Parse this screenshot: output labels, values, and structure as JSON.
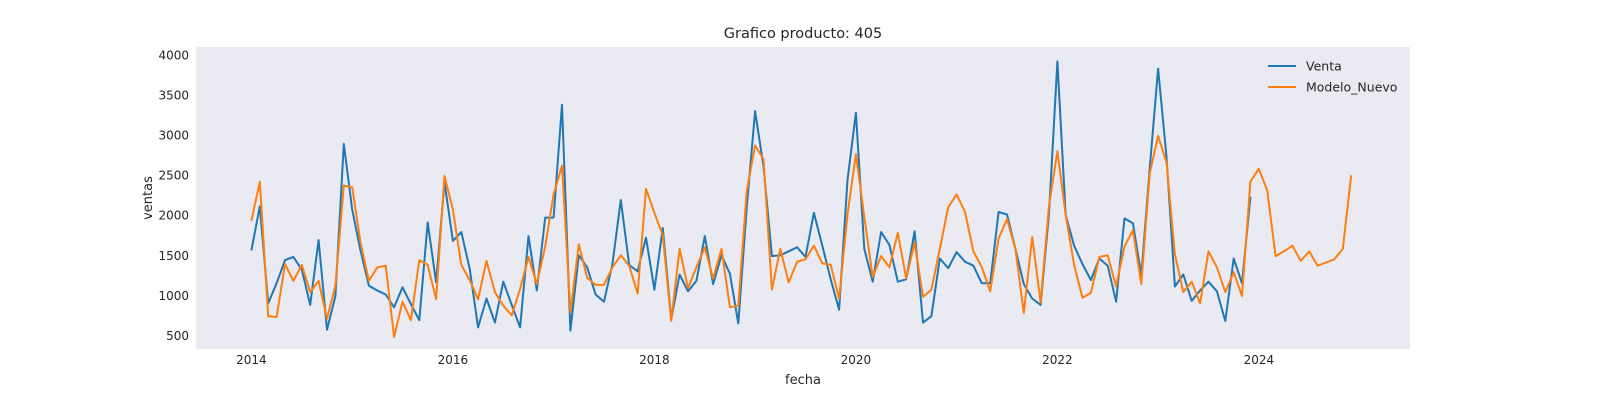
{
  "chart_data": {
    "type": "line",
    "title": "Grafico producto: 405",
    "xlabel": "fecha",
    "ylabel": "ventas",
    "xlim": [
      2013.45,
      2025.5
    ],
    "ylim": [
      330,
      4100
    ],
    "x_ticks": [
      2014,
      2016,
      2018,
      2020,
      2022,
      2024
    ],
    "y_ticks": [
      500,
      1000,
      1500,
      2000,
      2500,
      3000,
      3500,
      4000
    ],
    "grid": false,
    "background": "#eaeaf2",
    "legend_position": "top-right",
    "x_start": 2014.0,
    "x_step": 0.08333,
    "series": [
      {
        "name": "Venta",
        "color": "#1f77b4",
        "values": [
          1560,
          2110,
          900,
          1150,
          1440,
          1480,
          1320,
          880,
          1690,
          570,
          990,
          2890,
          2070,
          1560,
          1120,
          1060,
          1010,
          850,
          1100,
          890,
          690,
          1910,
          1160,
          2410,
          1680,
          1790,
          1330,
          600,
          960,
          660,
          1170,
          880,
          600,
          1740,
          1060,
          1970,
          1970,
          3380,
          560,
          1500,
          1350,
          1010,
          920,
          1390,
          2190,
          1380,
          1300,
          1720,
          1070,
          1840,
          700,
          1260,
          1050,
          1180,
          1740,
          1140,
          1500,
          1270,
          650,
          2090,
          3300,
          2610,
          1490,
          1500,
          1550,
          1600,
          1480,
          2030,
          1620,
          1200,
          820,
          2440,
          3280,
          1580,
          1170,
          1790,
          1630,
          1170,
          1200,
          1800,
          660,
          740,
          1460,
          1340,
          1540,
          1420,
          1370,
          1150,
          1150,
          2040,
          2010,
          1580,
          1140,
          960,
          880,
          2020,
          3920,
          2000,
          1620,
          1390,
          1190,
          1460,
          1370,
          920,
          1960,
          1900,
          1250,
          2580,
          3830,
          2730,
          1110,
          1260,
          930,
          1060,
          1170,
          1050,
          680,
          1460,
          1150,
          2230
        ]
      },
      {
        "name": "Modelo_Nuevo",
        "color": "#ff7f0e",
        "values": [
          1930,
          2420,
          740,
          730,
          1390,
          1180,
          1380,
          1040,
          1180,
          710,
          1120,
          2370,
          2350,
          1660,
          1180,
          1350,
          1370,
          480,
          920,
          690,
          1440,
          1380,
          950,
          2490,
          2070,
          1380,
          1190,
          950,
          1430,
          1040,
          870,
          750,
          1080,
          1480,
          1140,
          1610,
          2260,
          2620,
          790,
          1640,
          1220,
          1130,
          1130,
          1350,
          1500,
          1370,
          1020,
          2330,
          2030,
          1750,
          680,
          1580,
          1090,
          1350,
          1600,
          1210,
          1580,
          850,
          870,
          2300,
          2870,
          2700,
          1070,
          1580,
          1160,
          1420,
          1450,
          1620,
          1400,
          1380,
          960,
          2010,
          2760,
          1980,
          1230,
          1490,
          1350,
          1780,
          1210,
          1660,
          980,
          1070,
          1580,
          2100,
          2260,
          2040,
          1550,
          1350,
          1050,
          1710,
          1950,
          1580,
          780,
          1730,
          910,
          2120,
          2800,
          2000,
          1380,
          970,
          1030,
          1480,
          1500,
          1110,
          1610,
          1810,
          1140,
          2520,
          2990,
          2660,
          1510,
          1040,
          1170,
          900,
          1550,
          1350,
          1040,
          1290,
          990,
          2420,
          2580,
          2310,
          1490,
          1550,
          1620,
          1430,
          1550,
          1370,
          1410,
          1450,
          1580,
          2500
        ]
      }
    ]
  }
}
